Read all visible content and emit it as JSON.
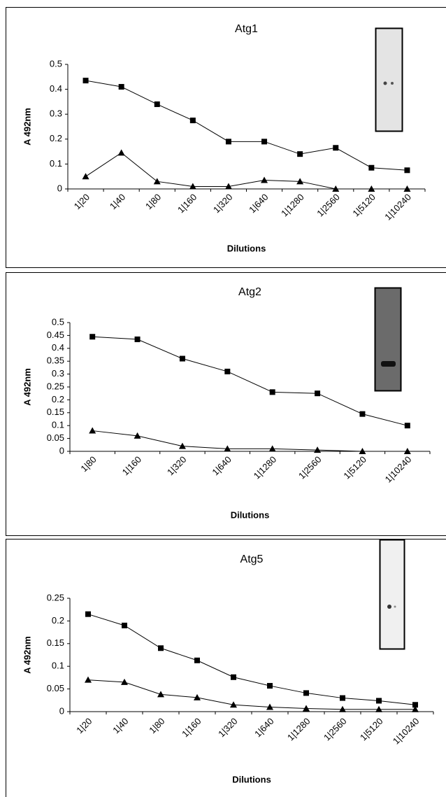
{
  "chart_data": [
    {
      "type": "line",
      "title": "Atg1",
      "y_label": "A 492nm",
      "x_label": "Dilutions",
      "categories": [
        "1|20",
        "1|40",
        "1|80",
        "1|160",
        "1|320",
        "1|640",
        "1|1280",
        "1|2560",
        "1|5120",
        "1|10240"
      ],
      "series": [
        {
          "color": "#000000",
          "marker": "square",
          "values": [
            0.435,
            0.41,
            0.34,
            0.275,
            0.19,
            0.19,
            0.14,
            0.165,
            0.085,
            0.075
          ]
        },
        {
          "color": "#000000",
          "marker": "triangle",
          "values": [
            0.05,
            0.145,
            0.03,
            0.01,
            0.01,
            0.035,
            0.03,
            0,
            0,
            0
          ]
        }
      ],
      "ylim": [
        0,
        0.5
      ],
      "yticks": [
        0,
        0.1,
        0.2,
        0.3,
        0.4,
        0.5
      ],
      "grid": false
    },
    {
      "type": "line",
      "title": "Atg2",
      "y_label": "A 492nm",
      "x_label": "Dilutions",
      "categories": [
        "1|80",
        "1|160",
        "1|320",
        "1|640",
        "1|1280",
        "1|2560",
        "1|5120",
        "1|10240"
      ],
      "series": [
        {
          "color": "#000000",
          "marker": "square",
          "values": [
            0.445,
            0.435,
            0.36,
            0.31,
            0.23,
            0.225,
            0.145,
            0.1
          ]
        },
        {
          "color": "#000000",
          "marker": "triangle",
          "values": [
            0.08,
            0.06,
            0.02,
            0.01,
            0.01,
            0.005,
            0,
            0
          ]
        }
      ],
      "ylim": [
        0,
        0.5
      ],
      "yticks": [
        0,
        0.05,
        0.1,
        0.15,
        0.2,
        0.25,
        0.3,
        0.35,
        0.4,
        0.45,
        0.5
      ],
      "grid": false
    },
    {
      "type": "line",
      "title": "Atg5",
      "y_label": "A 492nm",
      "x_label": "Dilutions",
      "categories": [
        "1|20",
        "1|40",
        "1|80",
        "1|160",
        "1|320",
        "1|640",
        "1|1280",
        "1|2560",
        "1|5120",
        "1|10240"
      ],
      "series": [
        {
          "color": "#000000",
          "marker": "square",
          "values": [
            0.215,
            0.19,
            0.14,
            0.113,
            0.076,
            0.057,
            0.041,
            0.03,
            0.024,
            0.015
          ]
        },
        {
          "color": "#000000",
          "marker": "triangle",
          "values": [
            0.07,
            0.065,
            0.038,
            0.031,
            0.015,
            0.01,
            0.007,
            0.005,
            0.005,
            0.005
          ]
        }
      ],
      "ylim": [
        0,
        0.25
      ],
      "yticks": [
        0,
        0.05,
        0.1,
        0.15,
        0.2,
        0.25
      ],
      "grid": false
    }
  ]
}
